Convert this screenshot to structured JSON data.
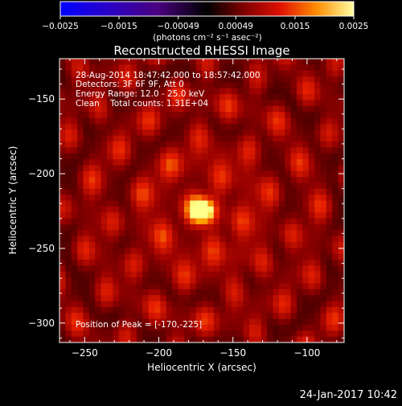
{
  "colorbar": {
    "ticks": [
      "-0.0025",
      "-0.0015",
      "-0.00049",
      "0.00049",
      "0.0015",
      "0.0025"
    ],
    "units": "(photons cm⁻² s⁻¹ asec⁻²)",
    "range": [
      -0.0025,
      0.0025
    ]
  },
  "chart_data": {
    "type": "heatmap",
    "title": "Reconstructed RHESSI Image",
    "xlabel": "Heliocentric X (arcsec)",
    "ylabel": "Heliocentric Y (arcsec)",
    "xlim": [
      -267,
      -75
    ],
    "ylim": [
      -313,
      -123
    ],
    "xticks": [
      -250,
      -200,
      -150,
      -100
    ],
    "xtick_labels": [
      "−250",
      "−200",
      "−150",
      "−100"
    ],
    "yticks": [
      -150,
      -200,
      -250,
      -300
    ],
    "ytick_labels": [
      "−150",
      "−200",
      "−250",
      "−300"
    ],
    "peak": {
      "x": -170,
      "y": -225
    },
    "annotations": [
      "28-Aug-2014 18:47:42.000 to 18:57:42.000",
      "Detectors: 3F 6F 9F, Att 0",
      "Energy Range: 12.0 - 25.0 keV",
      "Clean    Total counts: 1.31E+04",
      "Position of Peak = [-170,-225]"
    ]
  },
  "footer": {
    "timestamp": "24-Jan-2017 10:42"
  }
}
